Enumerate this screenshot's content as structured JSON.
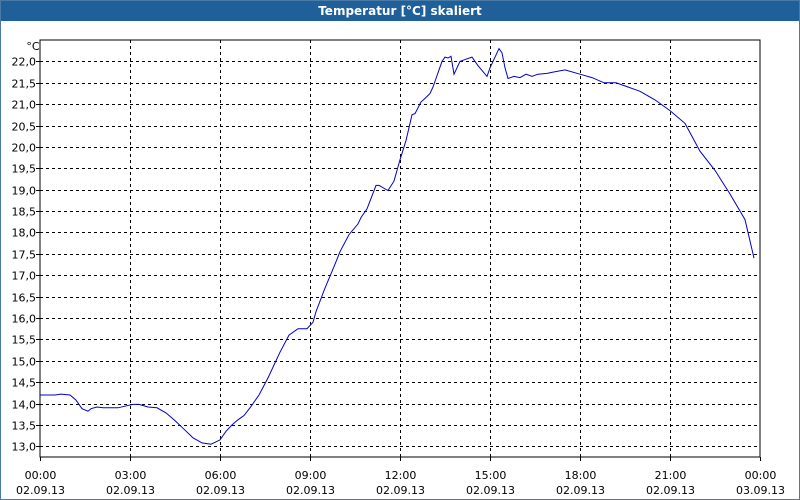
{
  "window": {
    "title": "Temperatur [°C] skaliert"
  },
  "chart_data": {
    "type": "line",
    "title": "Temperatur [°C] skaliert",
    "ylabel": "°C",
    "xlabel": "",
    "ylim": [
      12.75,
      22.5
    ],
    "xlim": [
      0,
      24
    ],
    "grid": true,
    "y_ticks": [
      "13,0",
      "13,5",
      "14,0",
      "14,5",
      "15,0",
      "15,5",
      "16,0",
      "16,5",
      "17,0",
      "17,5",
      "18,0",
      "18,5",
      "19,0",
      "19,5",
      "20,0",
      "20,5",
      "21,0",
      "21,5",
      "22,0"
    ],
    "x_ticks": [
      {
        "time": "00:00",
        "date": "02.09.13"
      },
      {
        "time": "03:00",
        "date": "02.09.13"
      },
      {
        "time": "06:00",
        "date": "02.09.13"
      },
      {
        "time": "09:00",
        "date": "02.09.13"
      },
      {
        "time": "12:00",
        "date": "02.09.13"
      },
      {
        "time": "15:00",
        "date": "02.09.13"
      },
      {
        "time": "18:00",
        "date": "02.09.13"
      },
      {
        "time": "21:00",
        "date": "02.09.13"
      },
      {
        "time": "00:00",
        "date": "03.09.13"
      }
    ],
    "series": [
      {
        "color": "#0000cc",
        "x": [
          0.0,
          0.5,
          0.7,
          1.0,
          1.2,
          1.4,
          1.6,
          1.7,
          1.9,
          2.1,
          2.3,
          2.6,
          2.9,
          3.1,
          3.3,
          3.6,
          3.9,
          4.2,
          4.5,
          4.8,
          5.1,
          5.4,
          5.7,
          6.0,
          6.2,
          6.4,
          6.6,
          6.8,
          7.0,
          7.3,
          7.6,
          7.8,
          8.0,
          8.3,
          8.6,
          8.9,
          9.1,
          9.2,
          9.5,
          9.8,
          10.0,
          10.3,
          10.6,
          10.7,
          10.9,
          11.2,
          11.3,
          11.6,
          11.8,
          12.0,
          12.2,
          12.4,
          12.5,
          12.7,
          12.9,
          13.0,
          13.1,
          13.2,
          13.3,
          13.4,
          13.5,
          13.6,
          13.7,
          13.8,
          14.0,
          14.2,
          14.4,
          14.6,
          14.9,
          15.0,
          15.1,
          15.3,
          15.4,
          15.5,
          15.6,
          15.8,
          16.0,
          16.2,
          16.4,
          16.6,
          16.9,
          17.1,
          17.5,
          18.0,
          18.4,
          18.8,
          19.2,
          19.6,
          20.0,
          20.5,
          21.0,
          21.5,
          22.0,
          22.5,
          23.0,
          23.5,
          23.8
        ],
        "y": [
          14.2,
          14.2,
          14.22,
          14.2,
          14.08,
          13.88,
          13.82,
          13.88,
          13.92,
          13.9,
          13.9,
          13.9,
          13.95,
          13.98,
          13.98,
          13.92,
          13.9,
          13.78,
          13.6,
          13.4,
          13.2,
          13.08,
          13.05,
          13.15,
          13.35,
          13.5,
          13.62,
          13.72,
          13.9,
          14.2,
          14.6,
          14.9,
          15.2,
          15.6,
          15.75,
          15.75,
          15.9,
          16.15,
          16.7,
          17.2,
          17.55,
          17.95,
          18.2,
          18.35,
          18.55,
          19.1,
          19.1,
          18.98,
          19.2,
          19.7,
          20.15,
          20.75,
          20.78,
          21.05,
          21.18,
          21.25,
          21.4,
          21.6,
          21.8,
          22.0,
          22.1,
          22.08,
          22.12,
          21.7,
          22.0,
          22.05,
          22.1,
          21.9,
          21.65,
          21.85,
          22.0,
          22.3,
          22.2,
          21.85,
          21.6,
          21.65,
          21.62,
          21.7,
          21.65,
          21.7,
          21.72,
          21.75,
          21.8,
          21.7,
          21.62,
          21.5,
          21.5,
          21.4,
          21.3,
          21.1,
          20.85,
          20.55,
          19.9,
          19.45,
          18.9,
          18.3,
          17.4
        ]
      }
    ]
  }
}
